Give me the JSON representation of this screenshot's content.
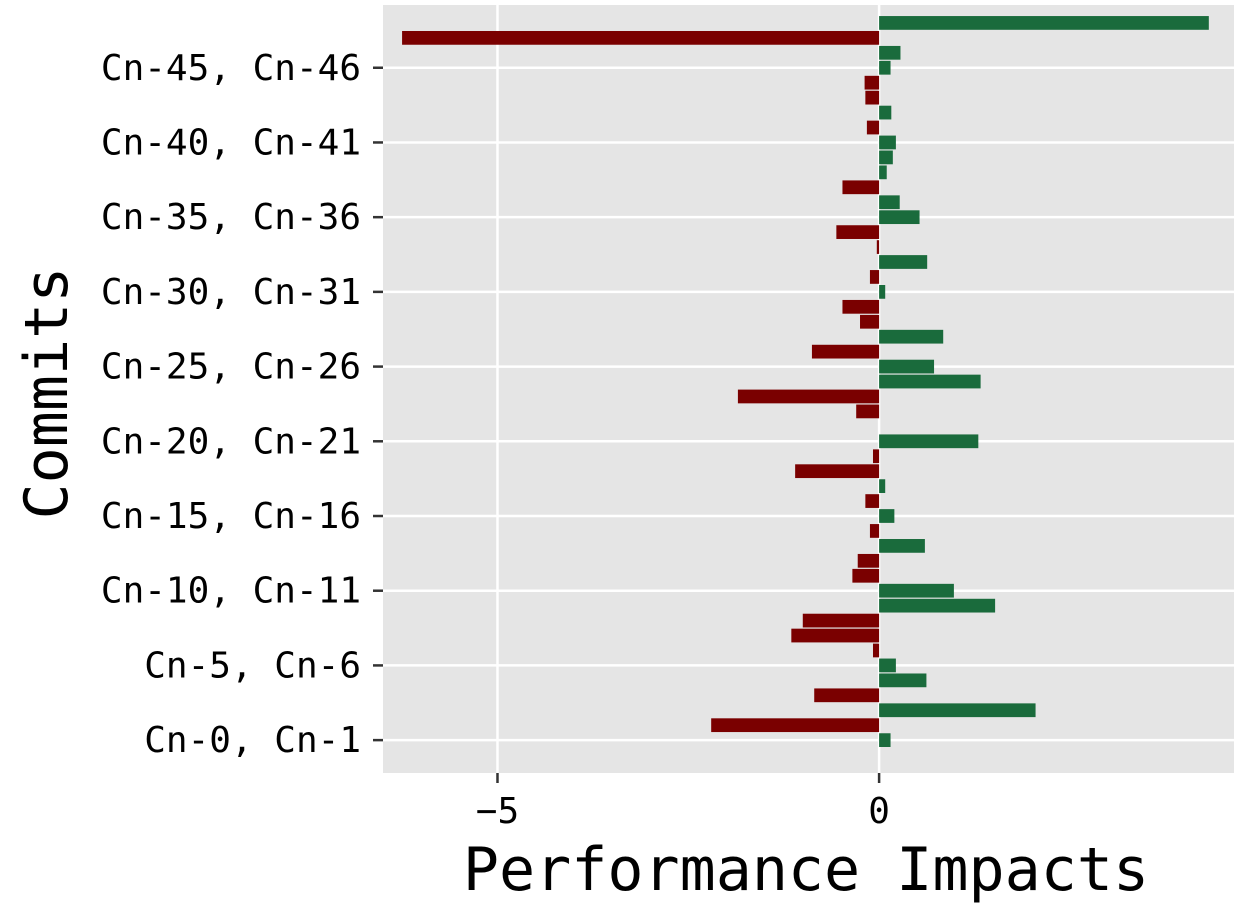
{
  "chart_data": {
    "type": "bar",
    "orientation": "horizontal",
    "xlabel": "Performance Impacts",
    "ylabel": "Commits",
    "xlim": [
      -6.5,
      4.65
    ],
    "x_ticks": [
      -5,
      0
    ],
    "x_tick_labels": [
      "−5",
      "0"
    ],
    "y_tick_labels": [
      "Cn-0, Cn-1",
      "Cn-5, Cn-6",
      "Cn-10, Cn-11",
      "Cn-15, Cn-16",
      "Cn-20, Cn-21",
      "Cn-25, Cn-26",
      "Cn-30, Cn-31",
      "Cn-35, Cn-36",
      "Cn-40, Cn-41",
      "Cn-45, Cn-46"
    ],
    "y_tick_positions": [
      0,
      5,
      10,
      15,
      20,
      25,
      30,
      35,
      40,
      45
    ],
    "ylim": [
      -2.2,
      49.2
    ],
    "grid": true,
    "positive_color": "#1a6b3c",
    "negative_color": "#7a0000",
    "background_color": "#e5e5e5",
    "grid_color": "#ffffff",
    "values": [
      0.15,
      -2.2,
      2.05,
      -0.85,
      0.62,
      0.22,
      -0.08,
      -1.15,
      -1.0,
      1.52,
      0.98,
      -0.35,
      -0.28,
      0.6,
      -0.12,
      0.2,
      -0.18,
      0.08,
      -1.1,
      -0.08,
      1.3,
      0,
      -0.3,
      -1.85,
      1.33,
      0.72,
      -0.88,
      0.84,
      -0.25,
      -0.48,
      0.08,
      -0.12,
      0.63,
      -0.03,
      -0.56,
      0.53,
      0.27,
      -0.48,
      0.1,
      0.18,
      0.22,
      -0.16,
      0.16,
      -0.18,
      -0.19,
      0.15,
      0.28,
      -6.25,
      4.32
    ]
  }
}
